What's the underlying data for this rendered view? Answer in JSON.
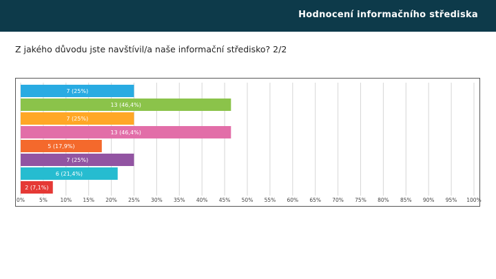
{
  "header": {
    "title": "Hodnocení informačního střediska"
  },
  "question": "Z jakého důvodu jste navštívil/a naše informační středisko? 2/2",
  "chart_data": {
    "type": "bar",
    "orientation": "horizontal",
    "title": "Z jakého důvodu jste navštívil/a naše informační středisko? 2/2",
    "xlim": [
      0,
      100
    ],
    "grid": true,
    "x_tick_labels": [
      "0%",
      "5%",
      "10%",
      "15%",
      "20%",
      "25%",
      "30%",
      "35%",
      "40%",
      "45%",
      "50%",
      "55%",
      "60%",
      "65%",
      "70%",
      "75%",
      "80%",
      "85%",
      "90%",
      "95%",
      "100%"
    ],
    "bars": [
      {
        "value": 25,
        "label": "7 (25%)",
        "color": "#29abe2"
      },
      {
        "value": 46.4,
        "label": "13 (46,4%)",
        "color": "#8bc34a"
      },
      {
        "value": 25,
        "label": "7 (25%)",
        "color": "#ffa726"
      },
      {
        "value": 46.4,
        "label": "13 (46,4%)",
        "color": "#e26ea8"
      },
      {
        "value": 17.9,
        "label": "5 (17,9%)",
        "color": "#f4692c"
      },
      {
        "value": 25,
        "label": "7 (25%)",
        "color": "#9254a2"
      },
      {
        "value": 21.4,
        "label": "6 (21,4%)",
        "color": "#26bcd0"
      },
      {
        "value": 7.1,
        "label": "2 (7,1%)",
        "color": "#e53935"
      }
    ]
  }
}
